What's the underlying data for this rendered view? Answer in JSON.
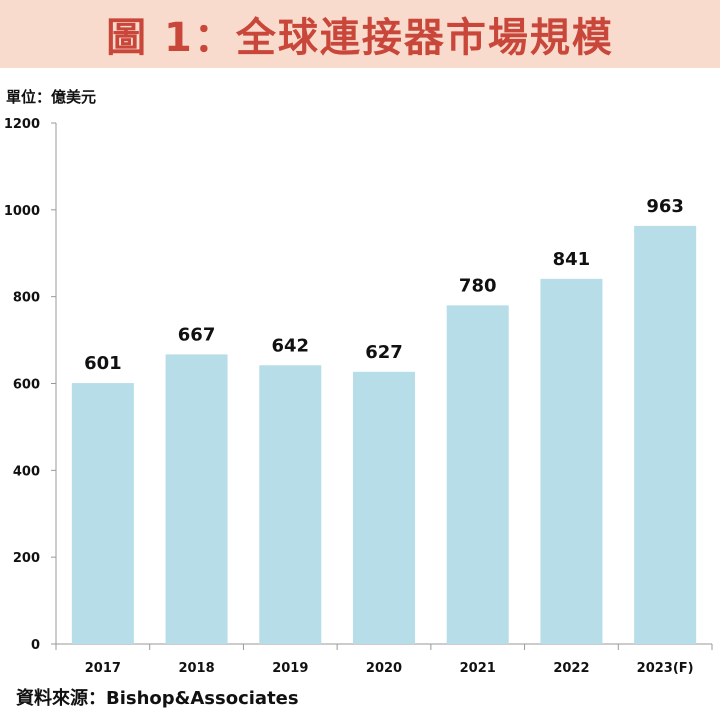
{
  "header": {
    "title": "圖 1：全球連接器市場規模"
  },
  "unit_label": "單位：億美元",
  "source_label": "資料來源：Bishop&Associates",
  "colors": {
    "bar": "#b7dde8",
    "title_bg": "#f8dbcc",
    "title_text": "#c9463a",
    "axis": "#999999"
  },
  "chart_data": {
    "type": "bar",
    "title": "圖 1：全球連接器市場規模",
    "ylabel": "單位：億美元",
    "xlabel": "",
    "categories": [
      "2017",
      "2018",
      "2019",
      "2020",
      "2021",
      "2022",
      "2023(F)"
    ],
    "values": [
      601,
      667,
      642,
      627,
      780,
      841,
      963
    ],
    "ylim": [
      0,
      1200
    ],
    "yticks": [
      0,
      200,
      400,
      600,
      800,
      1000,
      1200
    ],
    "grid": false,
    "legend": "none"
  }
}
